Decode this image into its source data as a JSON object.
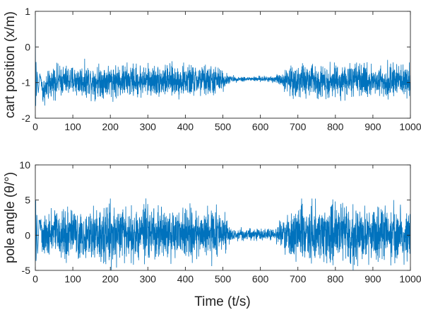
{
  "figure": {
    "xlabel": "Time (t/s)"
  },
  "chart_data": [
    {
      "type": "line",
      "ylabel": "cart position (x/m)",
      "xlim": [
        0,
        1000
      ],
      "ylim": [
        -2,
        1
      ],
      "xticks": [
        0,
        100,
        200,
        300,
        400,
        500,
        600,
        700,
        800,
        900,
        1000
      ],
      "yticks": [
        -2,
        -1,
        0,
        1
      ],
      "grid": false,
      "color": "#0072BD",
      "series": [
        {
          "x": [
            0,
            1,
            2,
            3,
            5,
            8,
            12,
            20,
            50,
            100,
            200,
            300,
            400,
            480,
            500,
            520,
            560,
            600,
            640,
            660,
            680,
            700,
            800,
            900,
            1000
          ],
          "y": [
            0.9,
            -1.9,
            -0.3,
            -1.4,
            -0.7,
            -1.3,
            -0.75,
            -1.25,
            -0.95,
            -0.95,
            -0.95,
            -0.95,
            -0.95,
            -0.95,
            -0.93,
            -0.9,
            -0.9,
            -0.9,
            -0.9,
            -0.92,
            -0.95,
            -0.95,
            -0.95,
            -0.95,
            -0.95
          ],
          "amplitude": [
            0,
            0,
            0,
            0,
            0,
            0,
            0,
            0.3,
            0.33,
            0.33,
            0.36,
            0.34,
            0.34,
            0.33,
            0.22,
            0.07,
            0.05,
            0.06,
            0.08,
            0.18,
            0.3,
            0.37,
            0.35,
            0.34,
            0.34
          ]
        }
      ]
    },
    {
      "type": "line",
      "ylabel": "pole angle (θ/°)",
      "xlim": [
        0,
        1000
      ],
      "ylim": [
        -5,
        10
      ],
      "xticks": [
        0,
        100,
        200,
        300,
        400,
        500,
        600,
        700,
        800,
        900,
        1000
      ],
      "yticks": [
        -5,
        0,
        5,
        10
      ],
      "grid": false,
      "color": "#0072BD",
      "series": [
        {
          "x": [
            0,
            1,
            2,
            4,
            6,
            10,
            20,
            50,
            100,
            200,
            300,
            400,
            480,
            500,
            520,
            560,
            600,
            640,
            660,
            680,
            700,
            800,
            900,
            1000
          ],
          "y": [
            0,
            6.5,
            -4.5,
            3.5,
            -2.8,
            2.2,
            0.2,
            0.2,
            0.2,
            0.3,
            0.2,
            0.2,
            0.2,
            0.2,
            0.1,
            0.1,
            0.1,
            0.1,
            0.1,
            0.2,
            0.2,
            0.3,
            0.2,
            0.2
          ],
          "amplitude": [
            0,
            0,
            0,
            0,
            0,
            0,
            2.4,
            2.6,
            2.7,
            3.1,
            2.9,
            2.8,
            2.7,
            2.2,
            0.8,
            0.6,
            0.6,
            0.8,
            1.5,
            2.5,
            3.0,
            3.1,
            3.0,
            2.9
          ]
        }
      ]
    }
  ]
}
